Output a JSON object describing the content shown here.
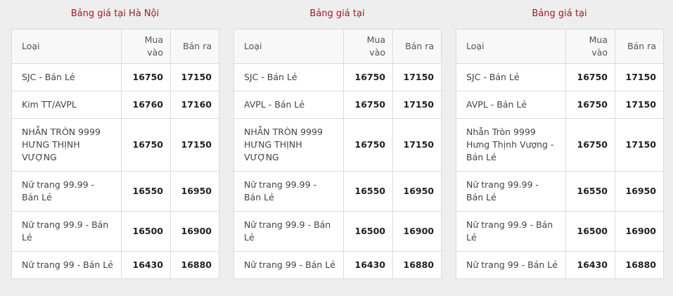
{
  "headers": {
    "type": "Loại",
    "buy": "Mua vào",
    "sell": "Bán ra"
  },
  "tables": [
    {
      "title": "Bảng giá tại Hà Nội",
      "rows": [
        {
          "name": "SJC - Bán Lẻ",
          "buy": "16750",
          "sell": "17150"
        },
        {
          "name": "Kim TT/AVPL",
          "buy": "16760",
          "sell": "17160"
        },
        {
          "name": "NHẪN TRÒN 9999 HƯNG THỊNH VƯỢNG",
          "buy": "16750",
          "sell": "17150"
        },
        {
          "name": "Nữ trang 99.99 - Bán Lẻ",
          "buy": "16550",
          "sell": "16950"
        },
        {
          "name": "Nữ trang 99.9 - Bán Lẻ",
          "buy": "16500",
          "sell": "16900"
        },
        {
          "name": "Nữ trang 99 - Bán Lẻ",
          "buy": "16430",
          "sell": "16880"
        }
      ]
    },
    {
      "title": "Bảng giá tại",
      "rows": [
        {
          "name": "SJC - Bán Lẻ",
          "buy": "16750",
          "sell": "17150"
        },
        {
          "name": "AVPL - Bán Lẻ",
          "buy": "16750",
          "sell": "17150"
        },
        {
          "name": "NHẪN TRÒN 9999 HƯNG THỊNH VƯỢNG",
          "buy": "16750",
          "sell": "17150"
        },
        {
          "name": "Nữ trang 99.99 - Bán Lẻ",
          "buy": "16550",
          "sell": "16950"
        },
        {
          "name": "Nữ trang 99.9 - Bán Lẻ",
          "buy": "16500",
          "sell": "16900"
        },
        {
          "name": "Nữ trang 99 - Bán Lẻ",
          "buy": "16430",
          "sell": "16880"
        }
      ]
    },
    {
      "title": "Bảng giá tại",
      "rows": [
        {
          "name": "SJC - Bán Lẻ",
          "buy": "16750",
          "sell": "17150"
        },
        {
          "name": "AVPL - Bán Lẻ",
          "buy": "16750",
          "sell": "17150"
        },
        {
          "name": "Nhẫn Tròn 9999 Hưng Thịnh Vượng - Bán Lẻ",
          "buy": "16750",
          "sell": "17150"
        },
        {
          "name": "Nữ trang 99.99 - Bán Lẻ",
          "buy": "16550",
          "sell": "16950"
        },
        {
          "name": "Nữ trang 99.9 - Bán Lẻ",
          "buy": "16500",
          "sell": "16900"
        },
        {
          "name": "Nữ trang 99 - Bán Lẻ",
          "buy": "16430",
          "sell": "16880"
        }
      ]
    }
  ]
}
